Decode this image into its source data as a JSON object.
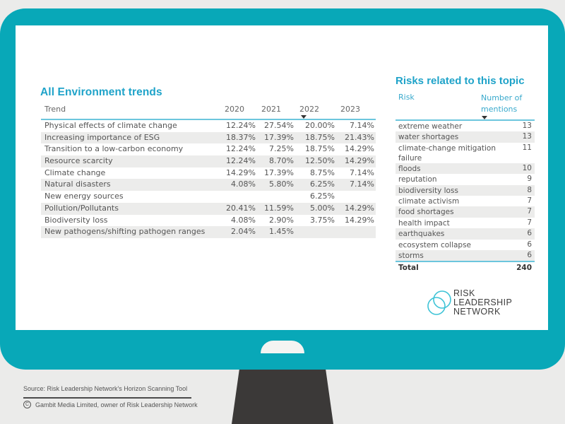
{
  "trends": {
    "title": "All Environment trends",
    "columns": [
      "Trend",
      "2020",
      "2021",
      "2022",
      "2023"
    ],
    "sorted_column": "2022",
    "rows": [
      {
        "trend": "Physical effects of climate change",
        "y2020": "12.24%",
        "y2021": "27.54%",
        "y2022": "20.00%",
        "y2023": "7.14%"
      },
      {
        "trend": "Increasing importance of ESG",
        "y2020": "18.37%",
        "y2021": "17.39%",
        "y2022": "18.75%",
        "y2023": "21.43%"
      },
      {
        "trend": "Transition to a low-carbon economy",
        "y2020": "12.24%",
        "y2021": "7.25%",
        "y2022": "18.75%",
        "y2023": "14.29%"
      },
      {
        "trend": "Resource scarcity",
        "y2020": "12.24%",
        "y2021": "8.70%",
        "y2022": "12.50%",
        "y2023": "14.29%"
      },
      {
        "trend": "Climate change",
        "y2020": "14.29%",
        "y2021": "17.39%",
        "y2022": "8.75%",
        "y2023": "7.14%"
      },
      {
        "trend": "Natural disasters",
        "y2020": "4.08%",
        "y2021": "5.80%",
        "y2022": "6.25%",
        "y2023": "7.14%"
      },
      {
        "trend": "New energy sources",
        "y2020": "",
        "y2021": "",
        "y2022": "6.25%",
        "y2023": ""
      },
      {
        "trend": "Pollution/Pollutants",
        "y2020": "20.41%",
        "y2021": "11.59%",
        "y2022": "5.00%",
        "y2023": "14.29%"
      },
      {
        "trend": "Biodiversity loss",
        "y2020": "4.08%",
        "y2021": "2.90%",
        "y2022": "3.75%",
        "y2023": "14.29%"
      },
      {
        "trend": "New pathogens/shifting pathogen ranges",
        "y2020": "2.04%",
        "y2021": "1.45%",
        "y2022": "",
        "y2023": ""
      }
    ]
  },
  "risks": {
    "title": "Risks related to this topic",
    "columns": [
      "Risk",
      "Number of mentions"
    ],
    "sorted_column": "Number of mentions",
    "rows": [
      {
        "risk": "extreme weather",
        "mentions": "13"
      },
      {
        "risk": "water shortages",
        "mentions": "13"
      },
      {
        "risk": "climate-change mitigation failure",
        "mentions": "11"
      },
      {
        "risk": "floods",
        "mentions": "10"
      },
      {
        "risk": "reputation",
        "mentions": "9"
      },
      {
        "risk": "biodiversity loss",
        "mentions": "8"
      },
      {
        "risk": "climate activism",
        "mentions": "7"
      },
      {
        "risk": "food shortages",
        "mentions": "7"
      },
      {
        "risk": "health impact",
        "mentions": "7"
      },
      {
        "risk": "earthquakes",
        "mentions": "6"
      },
      {
        "risk": "ecosystem collapse",
        "mentions": "6"
      },
      {
        "risk": "storms",
        "mentions": "6"
      }
    ],
    "total_label": "Total",
    "total_value": "240"
  },
  "logo": {
    "line1": "RISK",
    "line2": "LEADERSHIP",
    "line3": "NETWORK",
    "icon": "interlocking-circles-icon"
  },
  "footer": {
    "source": "Source: Risk Leadership Network's Horizon Scanning Tool",
    "copyright_symbol": "C",
    "copyright": "Gambit Media Limited, owner of Risk Leadership Network"
  },
  "colors": {
    "frame": "#08a8b8",
    "accent": "#1fa3c9",
    "stand": "#3b3938",
    "background": "#ebebea"
  }
}
